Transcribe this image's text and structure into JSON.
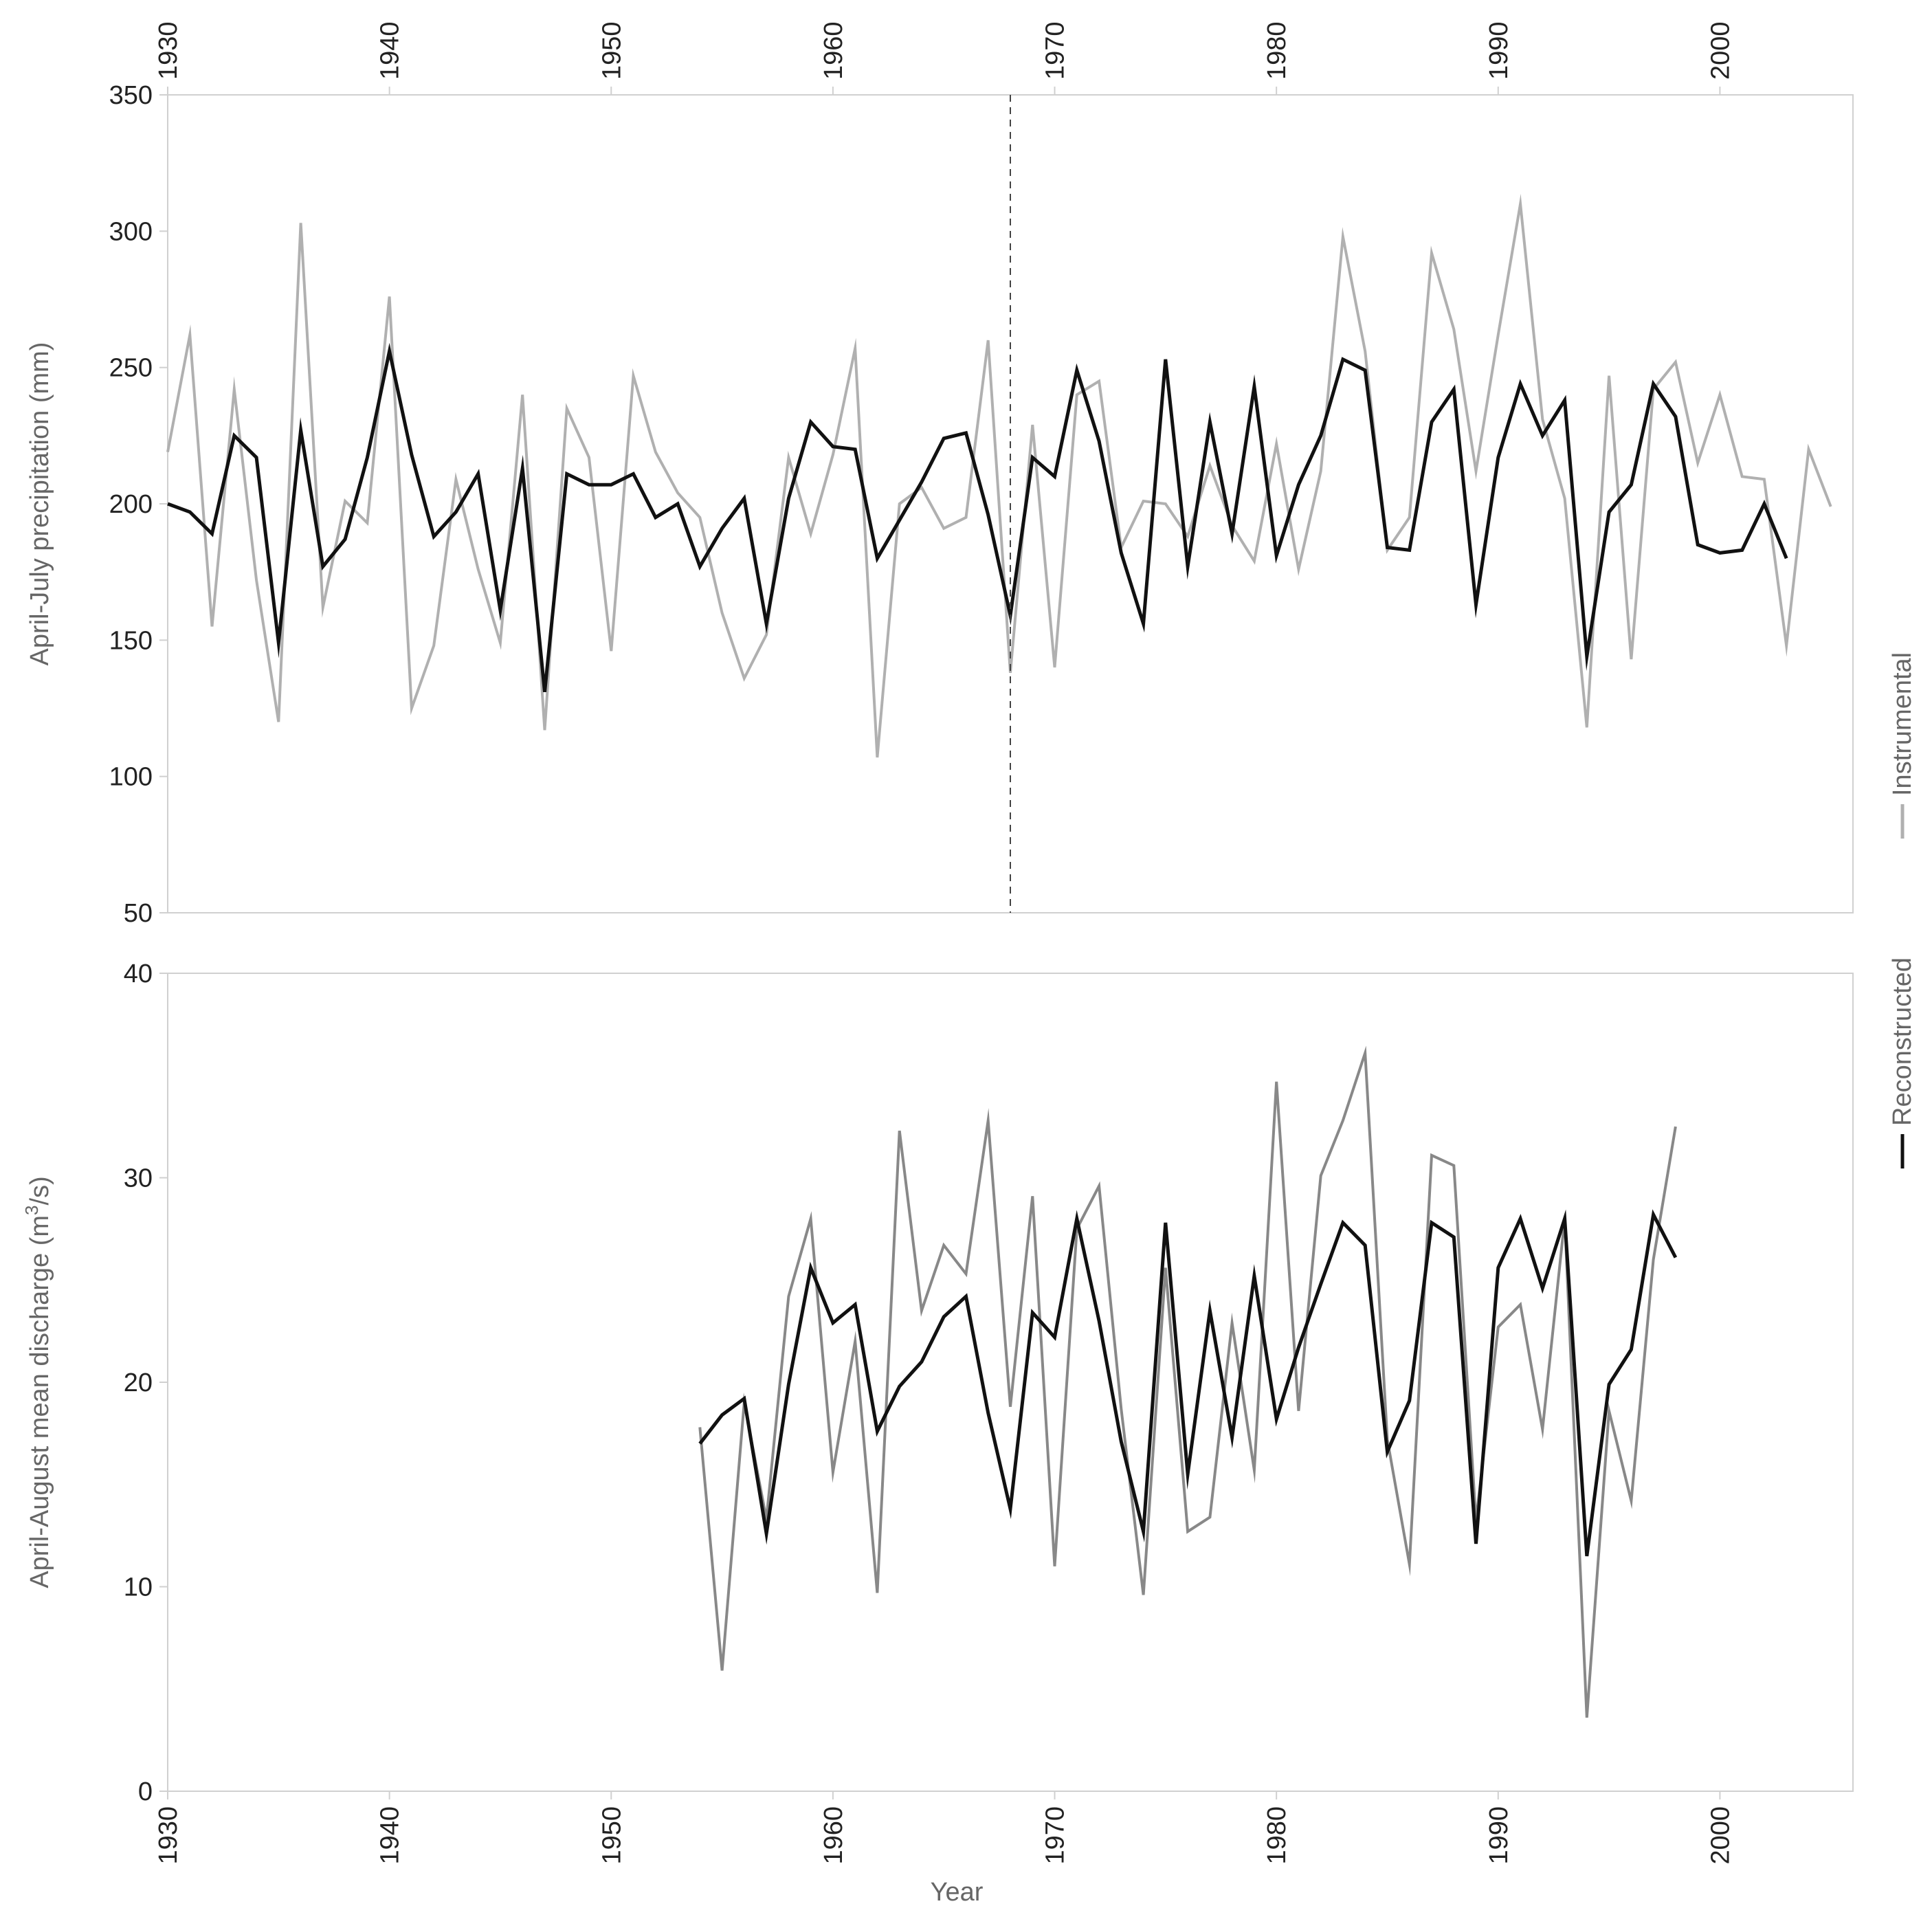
{
  "chart_data": [
    {
      "type": "line",
      "title": "",
      "xlabel": "",
      "ylabel": "April-July precipitation (mm)",
      "xlim": [
        1930,
        2006
      ],
      "ylim": [
        50,
        350
      ],
      "yticks": [
        50,
        100,
        150,
        200,
        250,
        300,
        350
      ],
      "xticks": [
        1930,
        1940,
        1950,
        1960,
        1970,
        1980,
        1990,
        2000
      ],
      "x_tick_position": "top",
      "reference_line": {
        "x": 1968,
        "style": "dashed"
      },
      "grid": false,
      "colors": {
        "instrumental": "#b0b0b0",
        "reconstructed": "#111111"
      },
      "series": [
        {
          "key": "instrumental",
          "x_start": 1930,
          "values": [
            219,
            262,
            155,
            242,
            172,
            120,
            303,
            162,
            201,
            193,
            276,
            125,
            148,
            209,
            176,
            149,
            240,
            117,
            235,
            217,
            146,
            247,
            219,
            204,
            195,
            160,
            136,
            152,
            217,
            189,
            218,
            257,
            107,
            200,
            206,
            191,
            195,
            260,
            138,
            229,
            140,
            240,
            245,
            184,
            201,
            200,
            188,
            214,
            192,
            179,
            222,
            176,
            212,
            298,
            256,
            183,
            195,
            292,
            264,
            212,
            262,
            310,
            231,
            202,
            118,
            247,
            143,
            242,
            252,
            215,
            240,
            210,
            209,
            148,
            220,
            199
          ]
        },
        {
          "key": "reconstructed",
          "x_start": 1930,
          "values": [
            200,
            197,
            189,
            225,
            217,
            149,
            227,
            177,
            187,
            217,
            256,
            218,
            188,
            197,
            211,
            161,
            213,
            131,
            211,
            207,
            207,
            211,
            195,
            200,
            177,
            191,
            202,
            156,
            202,
            230,
            221,
            220,
            180,
            194,
            208,
            224,
            226,
            196,
            159,
            217,
            210,
            249,
            223,
            182,
            156,
            253,
            177,
            230,
            189,
            243,
            181,
            207,
            225,
            253,
            249,
            184,
            183,
            230,
            242,
            163,
            217,
            244,
            225,
            238,
            144,
            197,
            207,
            244,
            232,
            185,
            182,
            183,
            200,
            180
          ]
        }
      ]
    },
    {
      "type": "line",
      "title": "",
      "xlabel": "Year",
      "ylabel_main": "April-August mean discharge (m",
      "ylabel_sup": "3",
      "ylabel_tail": "/s)",
      "xlim": [
        1930,
        2006
      ],
      "ylim": [
        0,
        40
      ],
      "yticks": [
        0,
        10,
        20,
        30,
        40
      ],
      "xticks": [
        1930,
        1940,
        1950,
        1960,
        1970,
        1980,
        1990,
        2000
      ],
      "x_tick_position": "bottom",
      "grid": false,
      "colors": {
        "instrumental": "#888888",
        "reconstructed": "#111111"
      },
      "series": [
        {
          "key": "instrumental",
          "x_start": 1954,
          "values": [
            17.8,
            5.9,
            19.0,
            13.3,
            24.2,
            28.0,
            15.6,
            22.0,
            9.7,
            32.3,
            23.5,
            26.7,
            25.3,
            32.8,
            18.8,
            29.1,
            11.0,
            27.5,
            29.6,
            18.7,
            9.6,
            25.6,
            12.7,
            13.4,
            22.9,
            15.7,
            34.7,
            18.6,
            30.1,
            32.8,
            36.1,
            17.2,
            11.1,
            31.1,
            30.6,
            13.2,
            22.7,
            23.8,
            17.7,
            28.0,
            3.6,
            18.6,
            14.2,
            26.0,
            32.5
          ]
        },
        {
          "key": "reconstructed",
          "x_start": 1954,
          "values": [
            17.0,
            18.4,
            19.2,
            12.6,
            19.9,
            25.6,
            22.9,
            23.8,
            17.6,
            19.8,
            21.0,
            23.2,
            24.2,
            18.5,
            13.8,
            23.4,
            22.2,
            28.0,
            23.0,
            17.1,
            12.7,
            27.8,
            15.5,
            23.5,
            17.3,
            25.2,
            18.2,
            21.7,
            24.8,
            27.8,
            26.7,
            16.6,
            19.1,
            27.8,
            27.1,
            12.1,
            25.6,
            28.0,
            24.6,
            28.0,
            11.5,
            19.9,
            21.6,
            28.2,
            26.1
          ]
        }
      ]
    }
  ],
  "legend": {
    "placement": "right",
    "orientation": "vertical",
    "items": [
      {
        "key": "instrumental",
        "label": "Instrumental",
        "color": "#b0b0b0"
      },
      {
        "key": "reconstructed",
        "label": "Reconstructed",
        "color": "#111111"
      }
    ]
  }
}
